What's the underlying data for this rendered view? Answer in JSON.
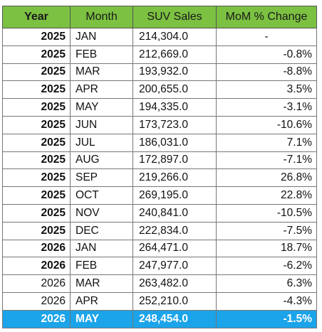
{
  "table": {
    "header": [
      "Year",
      "Month",
      "SUV Sales",
      "MoM % Change"
    ],
    "rows": [
      [
        "2025",
        "JAN",
        "214,304.0",
        "-"
      ],
      [
        "2025",
        "FEB",
        "212,669.0",
        "-0.8%"
      ],
      [
        "2025",
        "MAR",
        "193,932.0",
        "-8.8%"
      ],
      [
        "2025",
        "APR",
        "200,655.0",
        "3.5%"
      ],
      [
        "2025",
        "MAY",
        "194,335.0",
        "-3.1%"
      ],
      [
        "2025",
        "JUN",
        "173,723.0",
        "-10.6%"
      ],
      [
        "2025",
        "JUL",
        "186,031.0",
        "7.1%"
      ],
      [
        "2025",
        "AUG",
        "172,897.0",
        "-7.1%"
      ],
      [
        "2025",
        "SEP",
        "219,266.0",
        "26.8%"
      ],
      [
        "2025",
        "OCT",
        "269,195.0",
        "22.8%"
      ],
      [
        "2025",
        "NOV",
        "240,841.0",
        "-10.5%"
      ],
      [
        "2025",
        "DEC",
        "222,834.0",
        "-7.5%"
      ],
      [
        "2026",
        "JAN",
        "264,471.0",
        "18.7%"
      ],
      [
        "2026",
        "FEB",
        "247,977.0",
        "-6.2%"
      ],
      [
        "2026",
        "MAR",
        "263,482.0",
        "6.3%"
      ],
      [
        "2026",
        "APR",
        "252,210.0",
        "-4.3%"
      ],
      [
        "2026",
        "MAY",
        "248,454.0",
        "-1.5%"
      ]
    ]
  }
}
